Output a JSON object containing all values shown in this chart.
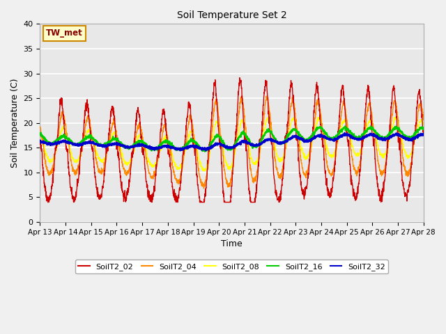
{
  "title": "Soil Temperature Set 2",
  "xlabel": "Time",
  "ylabel": "Soil Temperature (C)",
  "ylim": [
    0,
    40
  ],
  "yticks": [
    0,
    5,
    10,
    15,
    20,
    25,
    30,
    35,
    40
  ],
  "xtick_labels": [
    "Apr 13",
    "Apr 14",
    "Apr 15",
    "Apr 16",
    "Apr 17",
    "Apr 18",
    "Apr 19",
    "Apr 20",
    "Apr 21",
    "Apr 22",
    "Apr 23",
    "Apr 24",
    "Apr 25",
    "Apr 26",
    "Apr 27",
    "Apr 28"
  ],
  "series_colors": {
    "SoilT2_02": "#cc0000",
    "SoilT2_04": "#ff8800",
    "SoilT2_08": "#ffff00",
    "SoilT2_16": "#00cc00",
    "SoilT2_32": "#0000cc"
  },
  "annotation_text": "TW_met",
  "annotation_bg": "#ffffcc",
  "annotation_border": "#cc8800",
  "plot_bg_color": "#e8e8e8",
  "fig_bg_color": "#f0f0f0",
  "grid_color": "#ffffff",
  "n_days": 15,
  "pts_per_day": 144
}
